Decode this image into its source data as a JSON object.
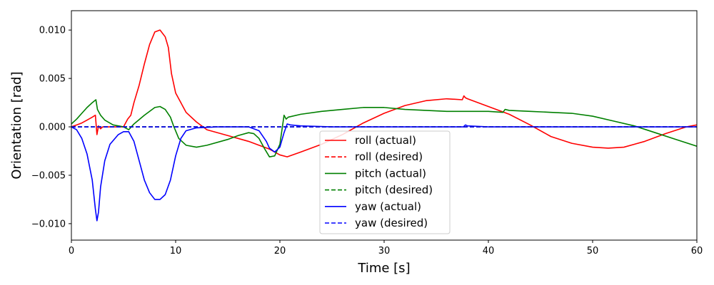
{
  "chart_data": {
    "type": "line",
    "title": "",
    "xlabel": "Time [s]",
    "ylabel": "Orientation [rad]",
    "xlim": [
      0,
      60
    ],
    "ylim": [
      -0.0117,
      0.012
    ],
    "xticks": [
      0,
      10,
      20,
      30,
      40,
      50,
      60
    ],
    "xtick_labels": [
      "0",
      "10",
      "20",
      "30",
      "40",
      "50",
      "60"
    ],
    "yticks": [
      0.01,
      0.005,
      0.0,
      -0.005,
      -0.01
    ],
    "ytick_labels": [
      "0.010",
      "0.005",
      "0.000",
      "−0.005",
      "−0.010"
    ],
    "grid": false,
    "legend_position": "lower-center",
    "series": [
      {
        "name": "roll (actual)",
        "color": "#ff0000",
        "style": "solid",
        "x": [
          0,
          0.5,
          1,
          1.5,
          2,
          2.3,
          2.45,
          2.6,
          2.8,
          3,
          4,
          5,
          5.4,
          5.7,
          6,
          6.5,
          7,
          7.5,
          8,
          8.5,
          9,
          9.3,
          9.6,
          10,
          11,
          12,
          13,
          15,
          17,
          18,
          19,
          20,
          20.7,
          22,
          24,
          26,
          28,
          30,
          32,
          34,
          36,
          37.5,
          37.65,
          37.8,
          38,
          40,
          42,
          44,
          46,
          48,
          50,
          51.5,
          53,
          55,
          57,
          59,
          60
        ],
        "y": [
          0.0,
          0.0002,
          0.0004,
          0.0007,
          0.001,
          0.0012,
          -0.0008,
          0.0001,
          -0.0002,
          0.0,
          0.0,
          0.0,
          0.0008,
          0.0012,
          0.0025,
          0.0043,
          0.0065,
          0.0085,
          0.0098,
          0.01,
          0.0093,
          0.0082,
          0.0055,
          0.0035,
          0.0015,
          0.0005,
          -0.0003,
          -0.0009,
          -0.0015,
          -0.0019,
          -0.0023,
          -0.0029,
          -0.0031,
          -0.0026,
          -0.0018,
          -0.0008,
          0.0004,
          0.0014,
          0.0022,
          0.0027,
          0.0029,
          0.0028,
          0.0032,
          0.003,
          0.0029,
          0.0021,
          0.0013,
          0.0002,
          -0.001,
          -0.0017,
          -0.0021,
          -0.0022,
          -0.0021,
          -0.0015,
          -0.0007,
          0.0,
          0.0002
        ]
      },
      {
        "name": "roll (desired)",
        "color": "#ff0000",
        "style": "dashed",
        "x": [
          0,
          60
        ],
        "y": [
          0,
          0
        ]
      },
      {
        "name": "pitch (actual)",
        "color": "#008000",
        "style": "solid",
        "x": [
          0,
          0.5,
          1,
          1.5,
          2,
          2.35,
          2.5,
          2.8,
          3.2,
          4,
          5,
          5.5,
          6,
          7,
          8,
          8.5,
          9,
          9.5,
          9.8,
          10.3,
          11,
          12,
          13,
          15,
          16,
          17,
          17.5,
          18,
          18.5,
          19,
          19.5,
          20,
          20.4,
          20.6,
          20.8,
          22,
          24,
          26,
          28,
          30,
          32,
          34,
          36,
          38,
          40,
          41.4,
          41.6,
          42,
          44,
          46,
          48,
          50,
          52,
          54,
          56,
          58,
          60
        ],
        "y": [
          0.0003,
          0.0008,
          0.0014,
          0.002,
          0.0025,
          0.0028,
          0.0018,
          0.0012,
          0.0007,
          0.0002,
          0.0,
          -0.0003,
          0.0003,
          0.0012,
          0.002,
          0.0021,
          0.0018,
          0.001,
          0.0001,
          -0.0012,
          -0.0019,
          -0.0021,
          -0.0019,
          -0.0013,
          -0.0009,
          -0.0006,
          -0.0007,
          -0.0012,
          -0.0022,
          -0.0031,
          -0.003,
          -0.0018,
          0.0012,
          0.0008,
          0.001,
          0.0013,
          0.0016,
          0.0018,
          0.002,
          0.002,
          0.0018,
          0.0017,
          0.0016,
          0.0016,
          0.0016,
          0.0015,
          0.0018,
          0.0017,
          0.0016,
          0.0015,
          0.0014,
          0.0011,
          0.0006,
          0.0001,
          -0.0006,
          -0.0013,
          -0.002
        ]
      },
      {
        "name": "pitch (desired)",
        "color": "#008000",
        "style": "dashed",
        "x": [
          0,
          60
        ],
        "y": [
          0,
          0
        ]
      },
      {
        "name": "yaw (actual)",
        "color": "#0000ff",
        "style": "solid",
        "x": [
          0,
          0.5,
          1,
          1.5,
          2,
          2.3,
          2.45,
          2.6,
          2.8,
          3.2,
          3.7,
          4.5,
          5,
          5.5,
          6,
          6.5,
          7,
          7.5,
          8,
          8.5,
          9,
          9.5,
          10,
          10.5,
          11,
          12,
          14,
          17,
          18,
          18.7,
          19,
          19.5,
          20,
          20.4,
          20.7,
          21,
          22,
          25,
          30,
          35,
          37.6,
          37.8,
          38,
          40,
          45,
          50,
          55,
          60
        ],
        "y": [
          0.0,
          -0.0003,
          -0.0012,
          -0.0028,
          -0.0055,
          -0.0085,
          -0.0097,
          -0.0088,
          -0.0062,
          -0.0035,
          -0.0018,
          -0.0008,
          -0.0005,
          -0.0005,
          -0.0015,
          -0.0035,
          -0.0055,
          -0.0068,
          -0.0075,
          -0.0075,
          -0.007,
          -0.0055,
          -0.003,
          -0.0012,
          -0.0004,
          -0.0001,
          0.0,
          0.0,
          -0.0004,
          -0.0015,
          -0.0022,
          -0.0026,
          -0.0021,
          -0.0006,
          0.0003,
          0.0002,
          0.0001,
          0.0,
          0.0,
          0.0,
          0.0,
          0.0002,
          0.0001,
          0.0,
          0.0,
          0.0,
          0.0,
          0.0
        ]
      },
      {
        "name": "yaw (desired)",
        "color": "#0000ff",
        "style": "dashed",
        "x": [
          0,
          60
        ],
        "y": [
          0,
          0
        ]
      }
    ]
  }
}
